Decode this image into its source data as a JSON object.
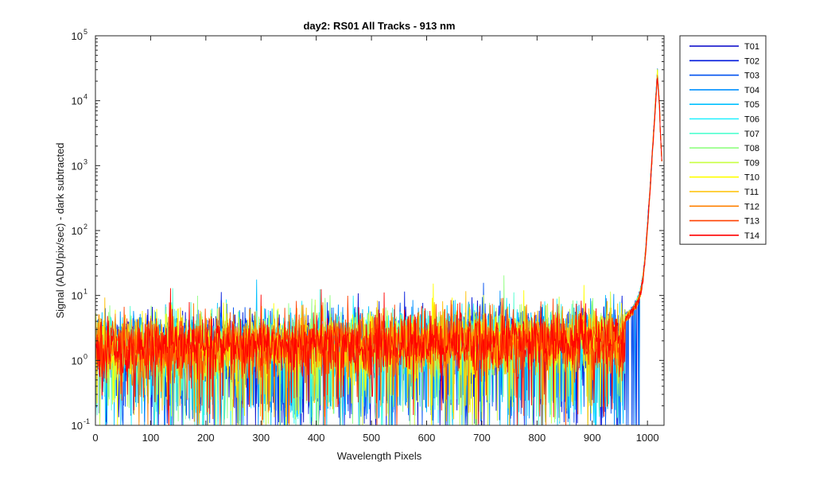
{
  "chart_data": {
    "type": "line",
    "title": "day2: RS01  All Tracks - 913 nm",
    "xlabel": "Wavelength Pixels",
    "ylabel": "Signal (ADU/pix/sec) - dark subtracted",
    "xlim": [
      0,
      1030
    ],
    "ylim": [
      0.1,
      100000
    ],
    "yscale": "log",
    "x_ticks": [
      "0",
      "100",
      "200",
      "300",
      "400",
      "500",
      "600",
      "700",
      "800",
      "900",
      "1000"
    ],
    "y_ticks": [
      {
        "base": "10",
        "exp": "-1",
        "value": 0.1
      },
      {
        "base": "10",
        "exp": "0",
        "value": 1
      },
      {
        "base": "10",
        "exp": "1",
        "value": 10
      },
      {
        "base": "10",
        "exp": "2",
        "value": 100
      },
      {
        "base": "10",
        "exp": "3",
        "value": 1000
      },
      {
        "base": "10",
        "exp": "4",
        "value": 10000
      },
      {
        "base": "10",
        "exp": "5",
        "value": 100000
      }
    ],
    "grid": false,
    "legend_position": "outside-top-right",
    "peak": {
      "x": 1018,
      "y": 28000
    },
    "baseline_level": 1.5,
    "series": [
      {
        "name": "T01",
        "color": "#0000c8"
      },
      {
        "name": "T02",
        "color": "#0018dc"
      },
      {
        "name": "T03",
        "color": "#0050f0"
      },
      {
        "name": "T04",
        "color": "#0090ff"
      },
      {
        "name": "T05",
        "color": "#00c0ff"
      },
      {
        "name": "T06",
        "color": "#20f0ff"
      },
      {
        "name": "T07",
        "color": "#50ffd0"
      },
      {
        "name": "T08",
        "color": "#90ff80"
      },
      {
        "name": "T09",
        "color": "#c8ff40"
      },
      {
        "name": "T10",
        "color": "#ffff00"
      },
      {
        "name": "T11",
        "color": "#ffc000"
      },
      {
        "name": "T12",
        "color": "#ff8000"
      },
      {
        "name": "T13",
        "color": "#ff4000"
      },
      {
        "name": "T14",
        "color": "#ff0000"
      }
    ]
  }
}
